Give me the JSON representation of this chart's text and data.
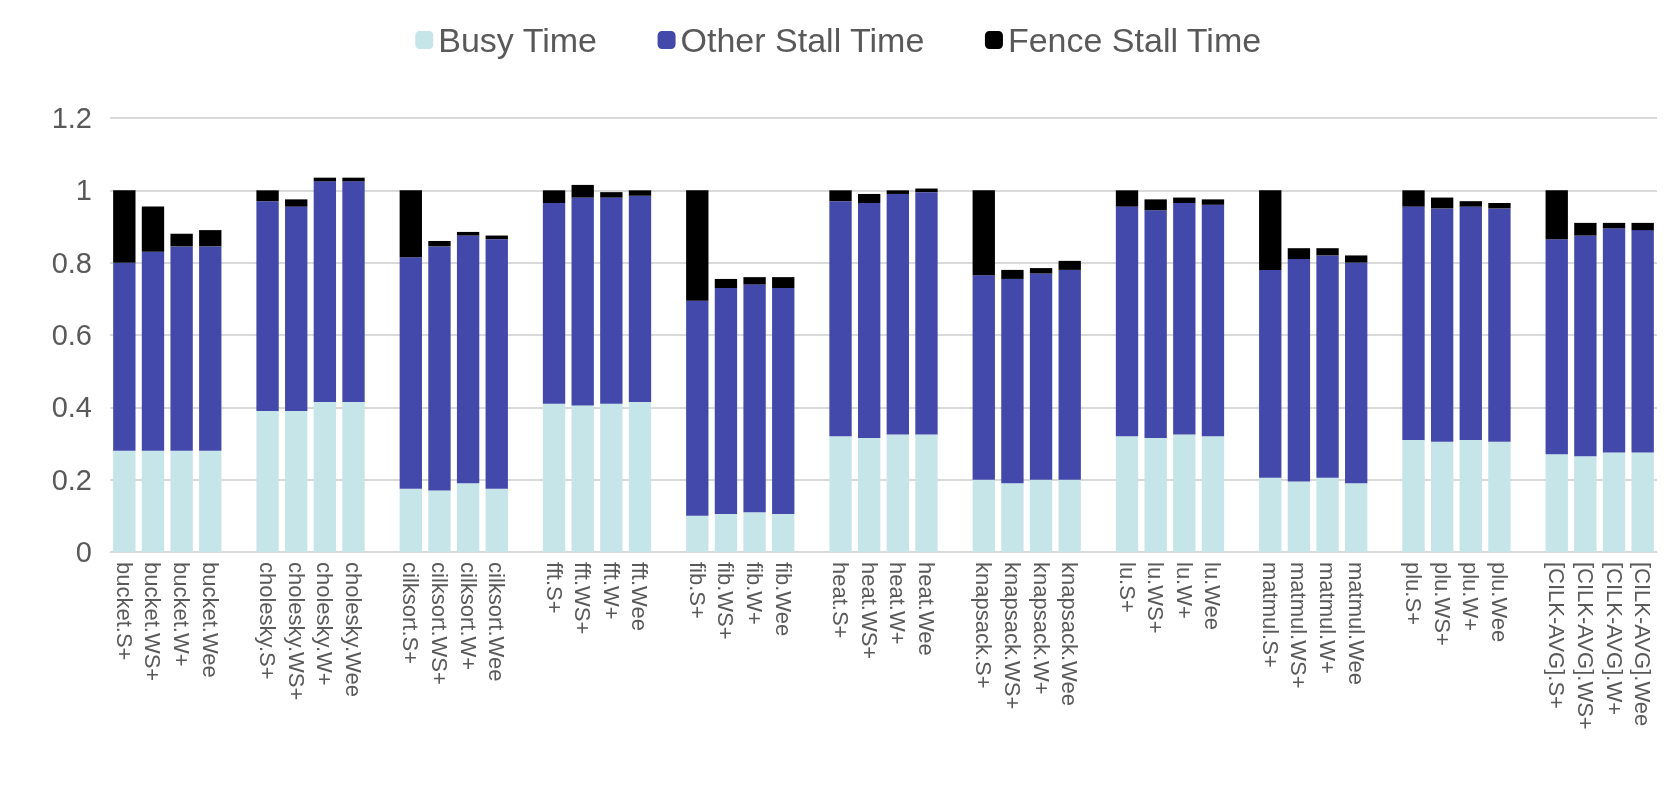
{
  "chart_data": {
    "type": "bar",
    "stacked": true,
    "categories": [
      "bucket.S+",
      "bucket.WS+",
      "bucket.W+",
      "bucket.Wee",
      null,
      "cholesky.S+",
      "cholesky.WS+",
      "cholesky.W+",
      "cholesky.Wee",
      null,
      "cilksort.S+",
      "cilksort.WS+",
      "cilksort.W+",
      "cilksort.Wee",
      null,
      "fft.S+",
      "fft.WS+",
      "fft.W+",
      "fft.Wee",
      null,
      "fib.S+",
      "fib.WS+",
      "fib.W+",
      "fib.Wee",
      null,
      "heat.S+",
      "heat.WS+",
      "heat.W+",
      "heat.Wee",
      null,
      "knapsack.S+",
      "knapsack.WS+",
      "knapsack.W+",
      "knapsack.Wee",
      null,
      "lu.S+",
      "lu.WS+",
      "lu.W+",
      "lu.Wee",
      null,
      "matmul.S+",
      "matmul.WS+",
      "matmul.W+",
      "matmul.Wee",
      null,
      "plu.S+",
      "plu.WS+",
      "plu.W+",
      "plu.Wee",
      null,
      "[CILK-AVG].S+",
      "[CILK-AVG].WS+",
      "[CILK-AVG].W+",
      "[CILK-AVG].Wee"
    ],
    "series": [
      {
        "name": "Busy Time",
        "color": "#c5e5e8",
        "values": [
          0.28,
          0.28,
          0.28,
          0.28,
          null,
          0.39,
          0.39,
          0.415,
          0.415,
          null,
          0.175,
          0.17,
          0.19,
          0.175,
          null,
          0.41,
          0.405,
          0.41,
          0.415,
          null,
          0.1,
          0.105,
          0.11,
          0.105,
          null,
          0.32,
          0.315,
          0.325,
          0.325,
          null,
          0.2,
          0.19,
          0.2,
          0.2,
          null,
          0.32,
          0.315,
          0.325,
          0.32,
          null,
          0.205,
          0.195,
          0.205,
          0.19,
          null,
          0.31,
          0.305,
          0.31,
          0.305,
          null,
          0.27,
          0.265,
          0.275,
          0.275
        ]
      },
      {
        "name": "Other Stall Time",
        "color": "#4349aa",
        "values": [
          0.52,
          0.55,
          0.565,
          0.565,
          null,
          0.58,
          0.565,
          0.61,
          0.61,
          null,
          0.64,
          0.675,
          0.685,
          0.69,
          null,
          0.555,
          0.575,
          0.57,
          0.57,
          null,
          0.595,
          0.625,
          0.63,
          0.625,
          null,
          0.65,
          0.65,
          0.665,
          0.67,
          null,
          0.565,
          0.565,
          0.57,
          0.58,
          null,
          0.635,
          0.63,
          0.64,
          0.64,
          null,
          0.575,
          0.615,
          0.615,
          0.61,
          null,
          0.645,
          0.645,
          0.645,
          0.645,
          null,
          0.595,
          0.61,
          0.62,
          0.615
        ]
      },
      {
        "name": "Fence Stall Time",
        "color": "#000000",
        "values": [
          0.2,
          0.125,
          0.035,
          0.045,
          null,
          0.03,
          0.02,
          0.01,
          0.01,
          null,
          0.185,
          0.015,
          0.01,
          0.01,
          null,
          0.035,
          0.035,
          0.015,
          0.015,
          null,
          0.305,
          0.025,
          0.02,
          0.03,
          null,
          0.03,
          0.025,
          0.01,
          0.01,
          null,
          0.235,
          0.025,
          0.015,
          0.025,
          null,
          0.045,
          0.03,
          0.015,
          0.015,
          null,
          0.22,
          0.03,
          0.02,
          0.02,
          null,
          0.045,
          0.03,
          0.015,
          0.015,
          null,
          0.135,
          0.035,
          0.015,
          0.02
        ]
      }
    ],
    "ylim": [
      0,
      1.2
    ],
    "yticks": [
      0,
      0.2,
      0.4,
      0.6,
      0.8,
      1,
      1.2
    ],
    "grid": "y",
    "legend": "top"
  }
}
